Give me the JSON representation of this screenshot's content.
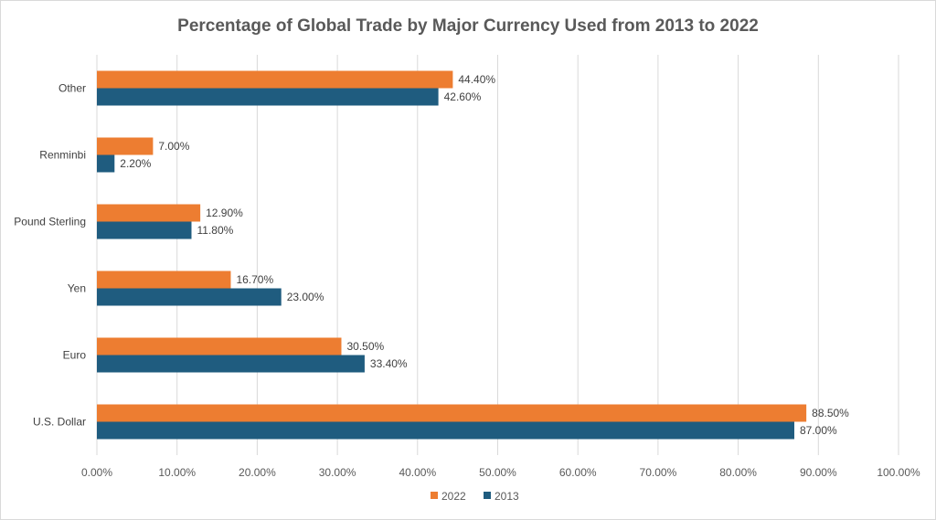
{
  "chart_data": {
    "type": "bar",
    "orientation": "horizontal",
    "title": "Percentage of Global Trade by Major Currency Used from 2013 to 2022",
    "categories": [
      "U.S. Dollar",
      "Euro",
      "Yen",
      "Pound Sterling",
      "Renminbi",
      "Other"
    ],
    "series": [
      {
        "name": "2022",
        "color": "#ED7D31",
        "values": [
          88.5,
          30.5,
          16.7,
          12.9,
          7.0,
          44.4
        ],
        "labels": [
          "88.50%",
          "30.50%",
          "16.70%",
          "12.90%",
          "7.00%",
          "44.40%"
        ]
      },
      {
        "name": "2013",
        "color": "#1F5C7F",
        "values": [
          87.0,
          33.4,
          23.0,
          11.8,
          2.2,
          42.6
        ],
        "labels": [
          "87.00%",
          "33.40%",
          "23.00%",
          "11.80%",
          "2.20%",
          "42.60%"
        ]
      }
    ],
    "xlim": [
      0,
      100
    ],
    "xticks": [
      0,
      10,
      20,
      30,
      40,
      50,
      60,
      70,
      80,
      90,
      100
    ],
    "xtick_labels": [
      "0.00%",
      "10.00%",
      "20.00%",
      "30.00%",
      "40.00%",
      "50.00%",
      "60.00%",
      "70.00%",
      "80.00%",
      "90.00%",
      "100.00%"
    ],
    "xlabel": "",
    "ylabel": "",
    "grid": true,
    "legend_position": "bottom",
    "legend": [
      "2022",
      "2013"
    ]
  }
}
